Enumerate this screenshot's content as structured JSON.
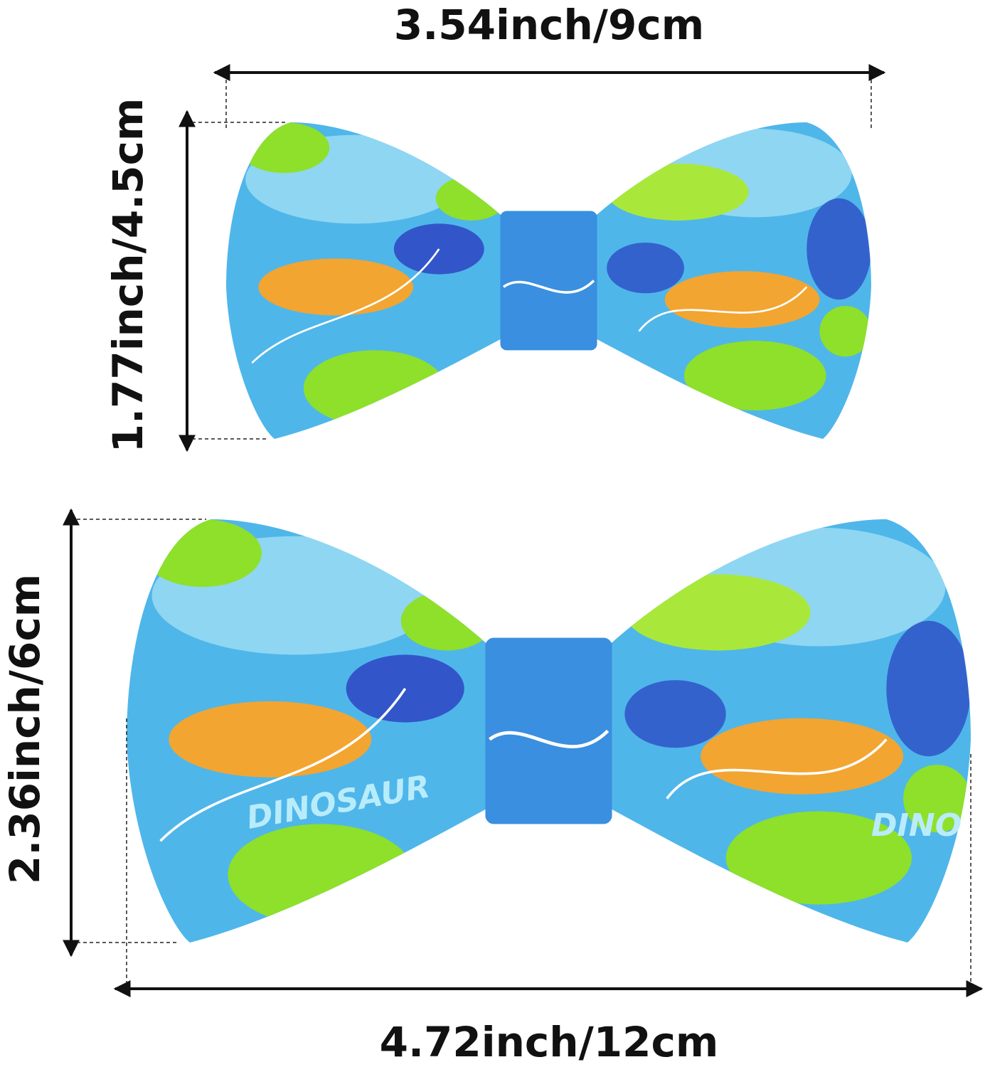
{
  "dimensions": {
    "small_width": "3.54inch/9cm",
    "small_height": "1.77inch/4.5cm",
    "large_height": "2.36inch/6cm",
    "large_width": "4.72inch/12cm"
  },
  "fabric_print": {
    "word": "DINOSAUR",
    "word_cut": "DINO"
  },
  "colors": {
    "base_blue": "#4fb6ea",
    "light_blue": "#8fd6f2",
    "dark_blue": "#2a3fc0",
    "lime": "#8ee02a",
    "orange": "#f2a531",
    "arrow": "#111111"
  }
}
